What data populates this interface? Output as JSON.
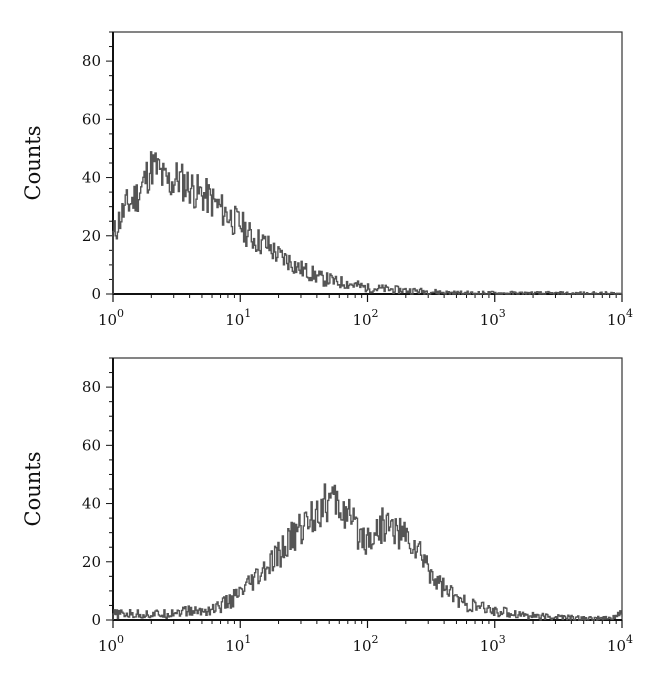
{
  "chart_data": [
    {
      "type": "line",
      "subtype": "histogram",
      "title": "",
      "xlabel": "",
      "ylabel": "Counts",
      "xscale": "log",
      "xlim": [
        1,
        10000
      ],
      "ylim": [
        0,
        90
      ],
      "yticks": [
        0,
        20,
        40,
        60,
        80
      ],
      "xticks": [
        1,
        10,
        100,
        1000,
        10000
      ],
      "xtick_labels": [
        {
          "base": "10",
          "exp": "0"
        },
        {
          "base": "10",
          "exp": "1"
        },
        {
          "base": "10",
          "exp": "2"
        },
        {
          "base": "10",
          "exp": "3"
        },
        {
          "base": "10",
          "exp": "4"
        }
      ],
      "grid": false,
      "line_color": "#555555",
      "series": [
        {
          "x": [
            1,
            1.1,
            1.25,
            1.4,
            1.6,
            1.8,
            2.0,
            2.2,
            2.5,
            2.8,
            3.2,
            3.6,
            4.0,
            4.5,
            5.0,
            5.6,
            6.3,
            7.1,
            8.0,
            9.0,
            10,
            11.2,
            12.6,
            14.1,
            15.8,
            17.8,
            20,
            22.4,
            25,
            28,
            32,
            36,
            40,
            45,
            50,
            56,
            63,
            71,
            80,
            90,
            100,
            126,
            158,
            200,
            251,
            316,
            400,
            500,
            700,
            1000,
            2000,
            5000,
            10000
          ],
          "y": [
            20,
            25,
            30,
            32,
            35,
            40,
            44,
            43,
            39,
            38,
            40,
            38,
            37,
            35,
            34,
            33,
            31,
            29,
            27,
            25,
            24,
            21,
            19,
            18,
            17,
            15,
            13,
            12,
            11,
            9,
            8,
            7,
            6,
            5,
            5,
            4,
            4,
            3.5,
            3,
            2.5,
            2,
            1.8,
            1.5,
            1.2,
            1,
            0.8,
            0.5,
            0.3,
            0.2,
            0.2,
            0.1,
            0,
            0
          ]
        }
      ]
    },
    {
      "type": "line",
      "subtype": "histogram",
      "title": "",
      "xlabel": "",
      "ylabel": "Counts",
      "xscale": "log",
      "xlim": [
        1,
        10000
      ],
      "ylim": [
        0,
        90
      ],
      "yticks": [
        0,
        20,
        40,
        60,
        80
      ],
      "xticks": [
        1,
        10,
        100,
        1000,
        10000
      ],
      "xtick_labels": [
        {
          "base": "10",
          "exp": "0"
        },
        {
          "base": "10",
          "exp": "1"
        },
        {
          "base": "10",
          "exp": "2"
        },
        {
          "base": "10",
          "exp": "3"
        },
        {
          "base": "10",
          "exp": "4"
        }
      ],
      "grid": false,
      "line_color": "#555555",
      "series": [
        {
          "x": [
            1,
            1.3,
            1.6,
            2.0,
            2.5,
            3.2,
            4.0,
            5.0,
            6.3,
            7.9,
            10,
            12.6,
            15.8,
            20,
            25,
            32,
            40,
            50,
            56,
            63,
            71,
            80,
            90,
            100,
            112,
            126,
            141,
            158,
            178,
            200,
            224,
            251,
            282,
            316,
            355,
            398,
            447,
            501,
            631,
            794,
            1000,
            1259,
            1585,
            2000,
            2512,
            3162,
            5012,
            7943,
            10000
          ],
          "y": [
            2,
            2,
            2,
            2,
            2,
            3,
            3,
            3,
            4,
            6,
            9,
            13,
            17,
            22,
            28,
            33,
            38,
            41,
            40,
            38,
            35,
            31,
            29,
            28,
            30,
            32,
            33,
            31,
            30,
            28,
            26,
            23,
            20,
            16,
            13,
            11,
            9,
            7,
            5,
            4,
            3,
            2.5,
            2,
            1.5,
            1,
            1,
            0.5,
            0.5,
            2
          ]
        }
      ]
    }
  ]
}
